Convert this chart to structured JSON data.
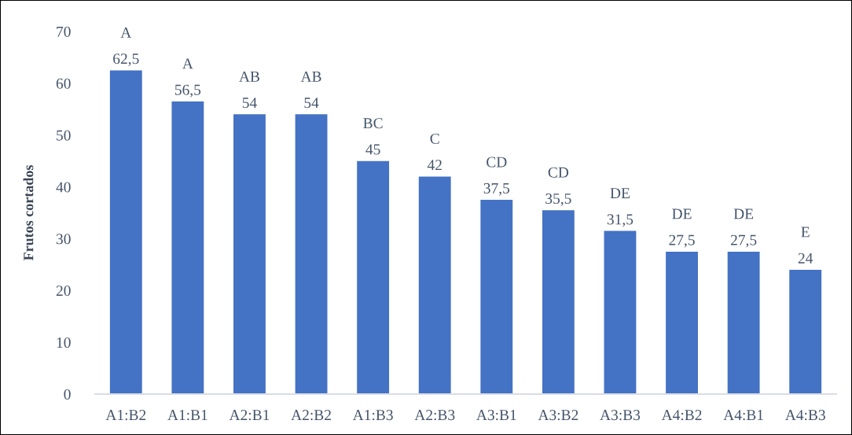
{
  "chart_data": {
    "type": "bar",
    "ylabel": "Frutos cortados",
    "categories": [
      "A1:B2",
      "A1:B1",
      "A2:B1",
      "A2:B2",
      "A1:B3",
      "A2:B3",
      "A3:B1",
      "A3:B2",
      "A3:B3",
      "A4:B2",
      "A4:B1",
      "A4:B3"
    ],
    "values": [
      62.5,
      56.5,
      54,
      54,
      45,
      42,
      37.5,
      35.5,
      31.5,
      27.5,
      27.5,
      24
    ],
    "color": "#4472c4",
    "ylim": [
      0,
      70
    ],
    "yticks": [
      0,
      10,
      20,
      30,
      40,
      50,
      60,
      70
    ],
    "value_labels": [
      "62,5",
      "56,5",
      "54",
      "54",
      "45",
      "42",
      "37,5",
      "35,5",
      "31,5",
      "27,5",
      "27,5",
      "24"
    ],
    "annotations": [
      {
        "text": "A",
        "x": "A1:B2",
        "y": 62.5
      },
      {
        "text": "A",
        "x": "A1:B1",
        "y": 56.5
      },
      {
        "text": "AB",
        "x": "A2:B1",
        "y": 54
      },
      {
        "text": "AB",
        "x": "A2:B2",
        "y": 54
      },
      {
        "text": "BC",
        "x": "A1:B3",
        "y": 45
      },
      {
        "text": "C",
        "x": "A2:B3",
        "y": 42
      },
      {
        "text": "CD",
        "x": "A3:B1",
        "y": 37.5
      },
      {
        "text": "CD",
        "x": "A3:B2",
        "y": 35.5
      },
      {
        "text": "DE",
        "x": "A3:B3",
        "y": 31.5
      },
      {
        "text": "DE",
        "x": "A4:B2",
        "y": 27.5
      },
      {
        "text": "DE",
        "x": "A4:B1",
        "y": 27.5
      },
      {
        "text": "E",
        "x": "A4:B3",
        "y": 24
      }
    ]
  }
}
